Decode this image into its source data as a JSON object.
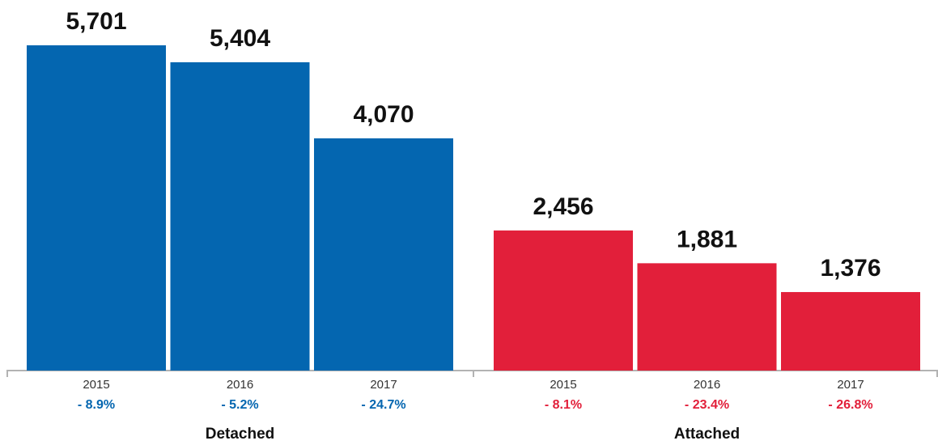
{
  "chart_data": {
    "type": "bar",
    "ylim": [
      0,
      6000
    ],
    "groups": [
      {
        "name": "Detached",
        "color": "#0466B0",
        "bars": [
          {
            "year": "2015",
            "value": 5701,
            "value_label": "5,701",
            "change": "- 8.9%"
          },
          {
            "year": "2016",
            "value": 5404,
            "value_label": "5,404",
            "change": "- 5.2%"
          },
          {
            "year": "2017",
            "value": 4070,
            "value_label": "4,070",
            "change": "- 24.7%"
          }
        ]
      },
      {
        "name": "Attached",
        "color": "#E21F3A",
        "bars": [
          {
            "year": "2015",
            "value": 2456,
            "value_label": "2,456",
            "change": "- 8.1%"
          },
          {
            "year": "2016",
            "value": 1881,
            "value_label": "1,881",
            "change": "- 23.4%"
          },
          {
            "year": "2017",
            "value": 1376,
            "value_label": "1,376",
            "change": "- 26.8%"
          }
        ]
      }
    ]
  }
}
